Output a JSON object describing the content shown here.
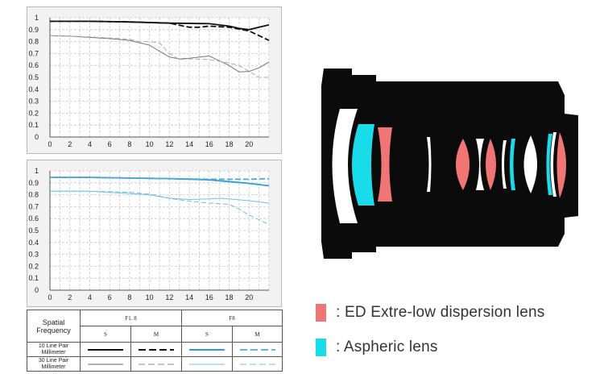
{
  "chart_data": [
    {
      "type": "line",
      "title": "",
      "xlabel": "",
      "ylabel": "",
      "xlim": [
        0,
        22
      ],
      "ylim": [
        0,
        1
      ],
      "x_ticks": [
        "0",
        "2",
        "4",
        "6",
        "8",
        "10",
        "12",
        "14",
        "16",
        "18",
        "20"
      ],
      "y_ticks": [
        "0",
        "0.1",
        "0.2",
        "0.3",
        "0.4",
        "0.5",
        "0.6",
        "0.7",
        "0.8",
        "0.9",
        "1"
      ],
      "grid": true,
      "series": [
        {
          "style": "thick-solid",
          "color": "#111111",
          "x": [
            0,
            4,
            8,
            12,
            16,
            18,
            19,
            20,
            21,
            22
          ],
          "y": [
            0.97,
            0.97,
            0.965,
            0.955,
            0.95,
            0.93,
            0.91,
            0.9,
            0.92,
            0.94
          ]
        },
        {
          "style": "thick-dashed",
          "color": "#111111",
          "x": [
            0,
            4,
            8,
            12,
            14,
            15,
            16,
            18,
            20,
            21,
            22
          ],
          "y": [
            0.97,
            0.97,
            0.965,
            0.955,
            0.92,
            0.92,
            0.93,
            0.92,
            0.89,
            0.85,
            0.81
          ]
        },
        {
          "style": "thin-solid",
          "color": "#777777",
          "x": [
            0,
            2,
            4,
            6,
            8,
            10,
            11,
            12,
            13,
            14,
            16,
            18,
            19,
            20,
            21,
            22
          ],
          "y": [
            0.85,
            0.845,
            0.835,
            0.825,
            0.81,
            0.77,
            0.72,
            0.67,
            0.655,
            0.66,
            0.68,
            0.6,
            0.545,
            0.55,
            0.58,
            0.63
          ]
        },
        {
          "style": "thin-dashed",
          "color": "#aaaaaa",
          "x": [
            0,
            4,
            8,
            9,
            10,
            11,
            12,
            13,
            14,
            16,
            18,
            19,
            20,
            21,
            22
          ],
          "y": [
            0.85,
            0.84,
            0.82,
            0.8,
            0.8,
            0.79,
            0.7,
            0.65,
            0.655,
            0.65,
            0.62,
            0.6,
            0.55,
            0.5,
            0.5
          ]
        }
      ]
    },
    {
      "type": "line",
      "title": "",
      "xlabel": "",
      "ylabel": "",
      "xlim": [
        0,
        22
      ],
      "ylim": [
        0,
        1
      ],
      "x_ticks": [
        "0",
        "2",
        "4",
        "6",
        "8",
        "10",
        "12",
        "14",
        "16",
        "18",
        "20"
      ],
      "y_ticks": [
        "0",
        "0.1",
        "0.2",
        "0.3",
        "0.4",
        "0.5",
        "0.6",
        "0.7",
        "0.8",
        "0.9",
        "1"
      ],
      "grid": true,
      "series": [
        {
          "style": "thick-solid",
          "color": "#2e9bd8",
          "x": [
            0,
            4,
            8,
            12,
            16,
            18,
            20,
            22
          ],
          "y": [
            0.945,
            0.945,
            0.94,
            0.935,
            0.925,
            0.91,
            0.895,
            0.875
          ]
        },
        {
          "style": "thick-dashed",
          "color": "#4aa8dd",
          "x": [
            0,
            4,
            8,
            12,
            16,
            18,
            20,
            22
          ],
          "y": [
            0.945,
            0.945,
            0.94,
            0.935,
            0.93,
            0.93,
            0.93,
            0.935
          ]
        },
        {
          "style": "thin-solid",
          "color": "#6cc0e8",
          "x": [
            0,
            4,
            6,
            8,
            10,
            12,
            14,
            16,
            17,
            18,
            20,
            22
          ],
          "y": [
            0.83,
            0.83,
            0.82,
            0.81,
            0.8,
            0.77,
            0.76,
            0.765,
            0.77,
            0.765,
            0.75,
            0.73
          ]
        },
        {
          "style": "thin-dashed",
          "color": "#6cc0e8",
          "x": [
            0,
            4,
            8,
            10,
            12,
            14,
            16,
            18,
            19,
            20,
            21,
            22
          ],
          "y": [
            0.83,
            0.83,
            0.82,
            0.805,
            0.77,
            0.745,
            0.73,
            0.72,
            0.68,
            0.63,
            0.59,
            0.55
          ]
        }
      ]
    }
  ],
  "legend_table": {
    "corner": "Spatial Frequency",
    "aperture_1": "F1. 8",
    "aperture_2": "F8",
    "s_label": "S",
    "m_label": "M",
    "row_10": "10 Line Pair Millimeter",
    "row_30": "30 Line Pair Millimeter"
  },
  "lens_legend": {
    "ed": {
      "text": ": ED Extre-low dispersion lens",
      "color": "#f07575"
    },
    "aspheric": {
      "text": ": Aspheric lens",
      "color": "#19dbe9"
    }
  },
  "colors": {
    "lens_body": "#0b0b0b",
    "normal_element": "#ffffff",
    "ed_element": "#f07575",
    "aspheric_element": "#19dbe9",
    "chart_black": "#111111",
    "chart_blue": "#2e9bd8"
  }
}
